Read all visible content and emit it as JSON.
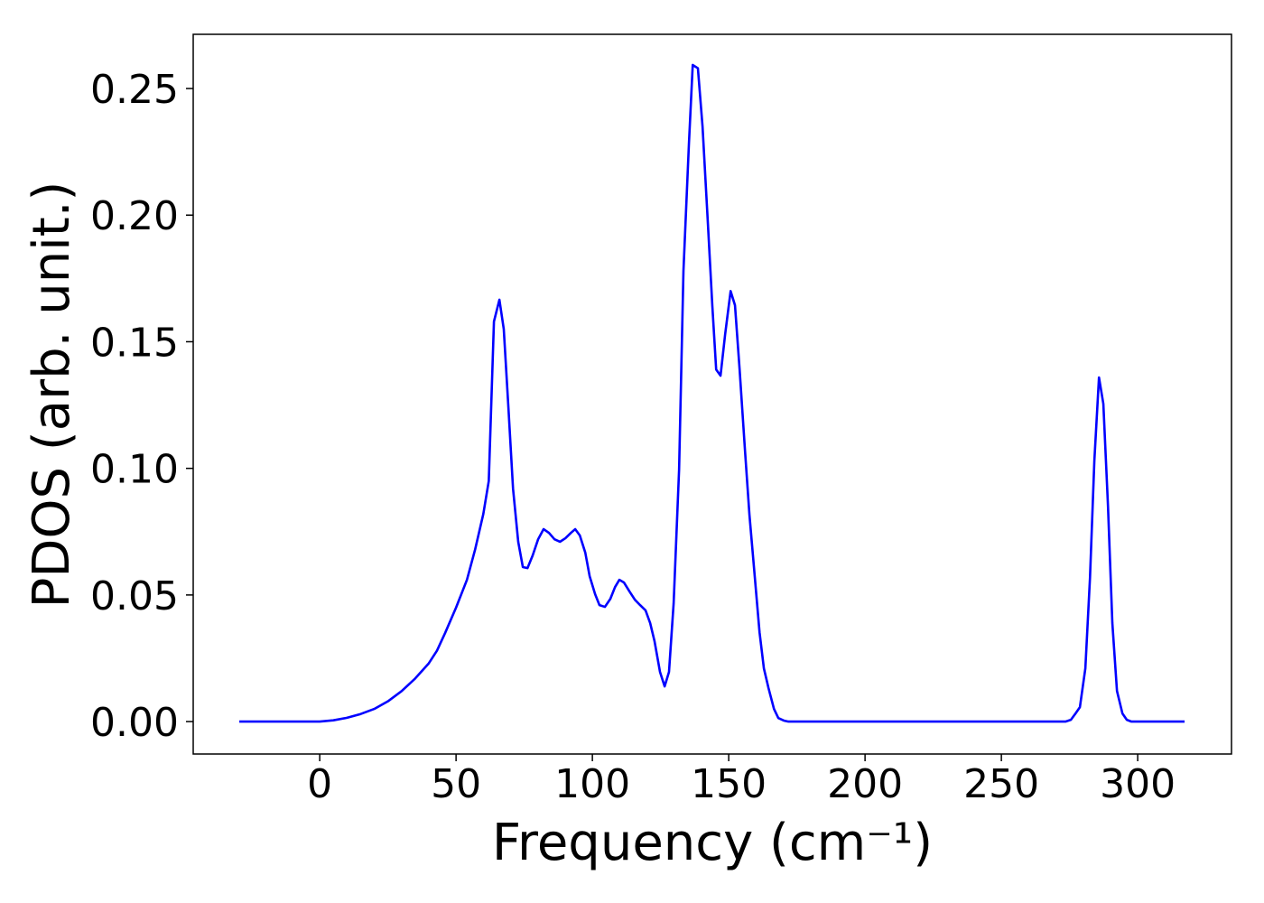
{
  "chart_data": {
    "type": "line",
    "xlabel": "Frequency (cm⁻¹)",
    "ylabel": "PDOS (arb. unit.)",
    "x": [
      -29.5,
      0,
      5,
      10,
      15,
      20,
      25,
      30,
      35,
      40,
      43,
      46,
      50,
      54,
      57,
      60,
      62,
      63.9,
      65.9,
      67.5,
      69.2,
      70.9,
      72.8,
      74.5,
      76.2,
      78.1,
      80.1,
      82.1,
      84.1,
      86.1,
      88.1,
      90.1,
      92.1,
      93.7,
      95.4,
      97.4,
      99,
      101,
      102.6,
      104.6,
      106.6,
      108.3,
      109.9,
      111.6,
      113.6,
      115.6,
      117.5,
      119.5,
      121.2,
      122.8,
      124.8,
      126.5,
      128.1,
      129.8,
      131.8,
      133.4,
      135.4,
      136.8,
      138.7,
      140.4,
      142.4,
      144,
      145.4,
      147,
      148.7,
      150.7,
      152.3,
      154,
      156,
      157.6,
      159.6,
      161.3,
      162.9,
      164.6,
      166.6,
      168.2,
      170.2,
      171.9,
      273.5,
      275.5,
      277.2,
      278.8,
      280.8,
      282.5,
      284.1,
      285.8,
      287.4,
      289.1,
      290.7,
      292.4,
      294.4,
      296,
      297.7,
      317.2
    ],
    "series": [
      {
        "color": "#0000ff",
        "values": [
          0,
          0,
          0.0005,
          0.0015,
          0.003,
          0.005,
          0.008,
          0.012,
          0.017,
          0.023,
          0.028,
          0.035,
          0.045,
          0.056,
          0.068,
          0.082,
          0.095,
          0.158,
          0.1666,
          0.155,
          0.124,
          0.092,
          0.071,
          0.061,
          0.0606,
          0.0656,
          0.072,
          0.076,
          0.0745,
          0.072,
          0.071,
          0.0724,
          0.0745,
          0.076,
          0.0735,
          0.0667,
          0.0574,
          0.0503,
          0.046,
          0.0453,
          0.0485,
          0.0531,
          0.056,
          0.0549,
          0.0514,
          0.0481,
          0.046,
          0.0439,
          0.0389,
          0.0317,
          0.0196,
          0.0139,
          0.0196,
          0.0467,
          0.0995,
          0.178,
          0.228,
          0.2593,
          0.258,
          0.235,
          0.196,
          0.164,
          0.139,
          0.1366,
          0.153,
          0.17,
          0.1644,
          0.139,
          0.1066,
          0.0817,
          0.0567,
          0.0353,
          0.021,
          0.0132,
          0.005,
          0.0014,
          0.0004,
          0,
          0,
          0.0007,
          0.0032,
          0.0057,
          0.021,
          0.0567,
          0.103,
          0.1359,
          0.1255,
          0.0852,
          0.0389,
          0.0121,
          0.0032,
          0.0007,
          0,
          0
        ]
      }
    ],
    "xlim": [
      -46.4,
      334.4
    ],
    "ylim": [
      -0.0128,
      0.2714
    ],
    "xticks": [
      0,
      50,
      100,
      150,
      200,
      250,
      300
    ],
    "yticks": [
      {
        "value": 0,
        "label": "0.00"
      },
      {
        "value": 0.05,
        "label": "0.05"
      },
      {
        "value": 0.1,
        "label": "0.10"
      },
      {
        "value": 0.15,
        "label": "0.15"
      },
      {
        "value": 0.2,
        "label": "0.20"
      },
      {
        "value": 0.25,
        "label": "0.25"
      }
    ],
    "grid": false
  }
}
